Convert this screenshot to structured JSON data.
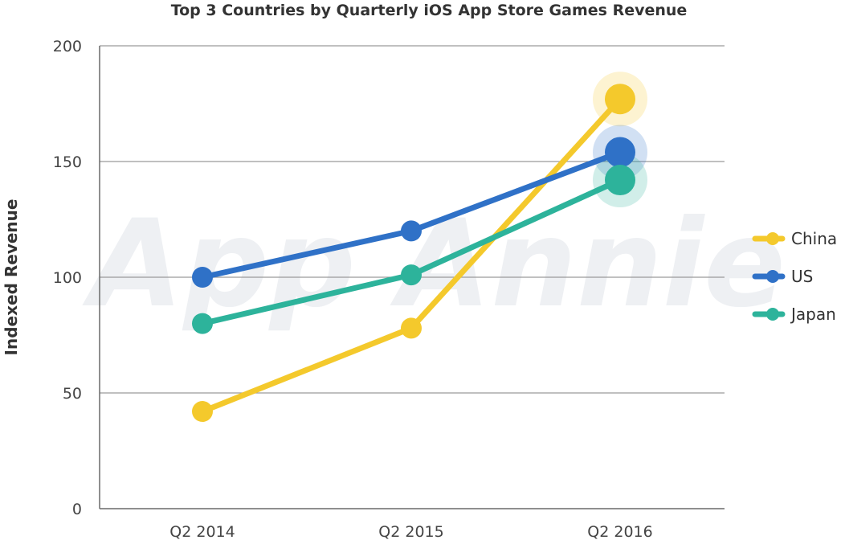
{
  "chart_data": {
    "type": "line",
    "title": "Top 3 Countries by Quarterly iOS App Store Games Revenue",
    "xlabel": "",
    "ylabel": "Indexed Revenue",
    "categories": [
      "Q2 2014",
      "Q2 2015",
      "Q2 2016"
    ],
    "ylim": [
      0,
      200
    ],
    "yticks": [
      0,
      50,
      100,
      150,
      200
    ],
    "grid": true,
    "legend_position": "right",
    "watermark": "App Annie",
    "series": [
      {
        "name": "China",
        "color": "#f4c92c",
        "values": [
          42,
          78,
          177
        ]
      },
      {
        "name": "US",
        "color": "#2f71c7",
        "values": [
          100,
          120,
          154
        ]
      },
      {
        "name": "Japan",
        "color": "#2db39b",
        "values": [
          80,
          101,
          142
        ]
      }
    ]
  }
}
